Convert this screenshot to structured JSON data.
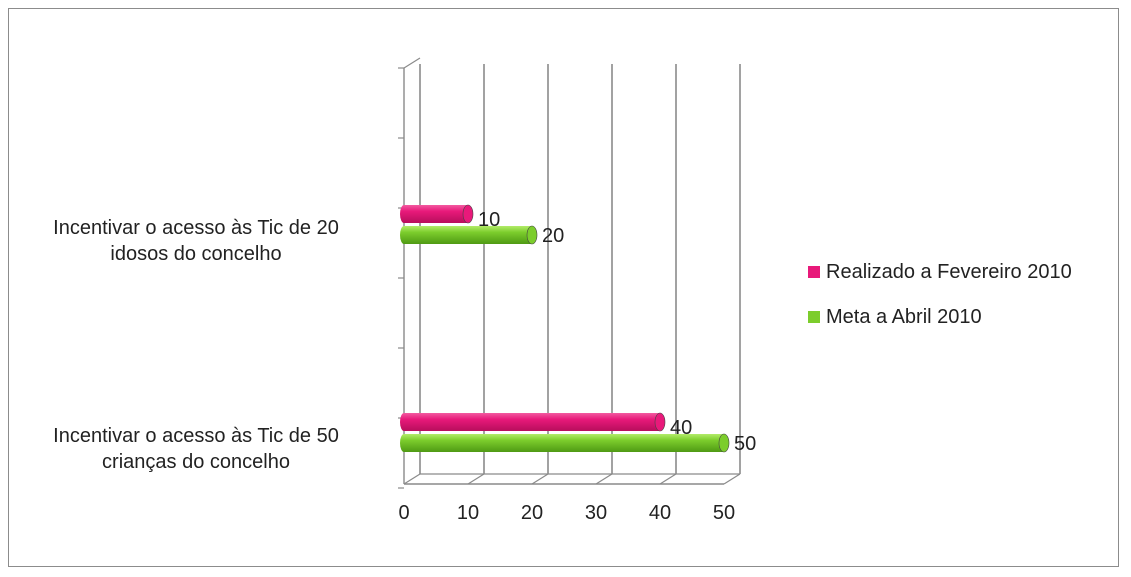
{
  "chart_data": {
    "type": "bar",
    "orientation": "horizontal",
    "style": "3d-cylinder",
    "categories": [
      [
        "Incentivar o acesso às Tic de 20",
        "idosos do concelho"
      ],
      [
        "Incentivar o acesso às Tic de 50",
        "crianças do concelho"
      ]
    ],
    "series": [
      {
        "name": "Realizado a Fevereiro 2010",
        "color": "#e8197a",
        "values": [
          10,
          40
        ]
      },
      {
        "name": "Meta a Abril 2010",
        "color": "#7ccd2c",
        "values": [
          20,
          50
        ]
      }
    ],
    "xticks": [
      "0",
      "10",
      "20",
      "30",
      "40",
      "50"
    ],
    "xlim": [
      0,
      50
    ],
    "grid": true,
    "legend_position": "right"
  }
}
